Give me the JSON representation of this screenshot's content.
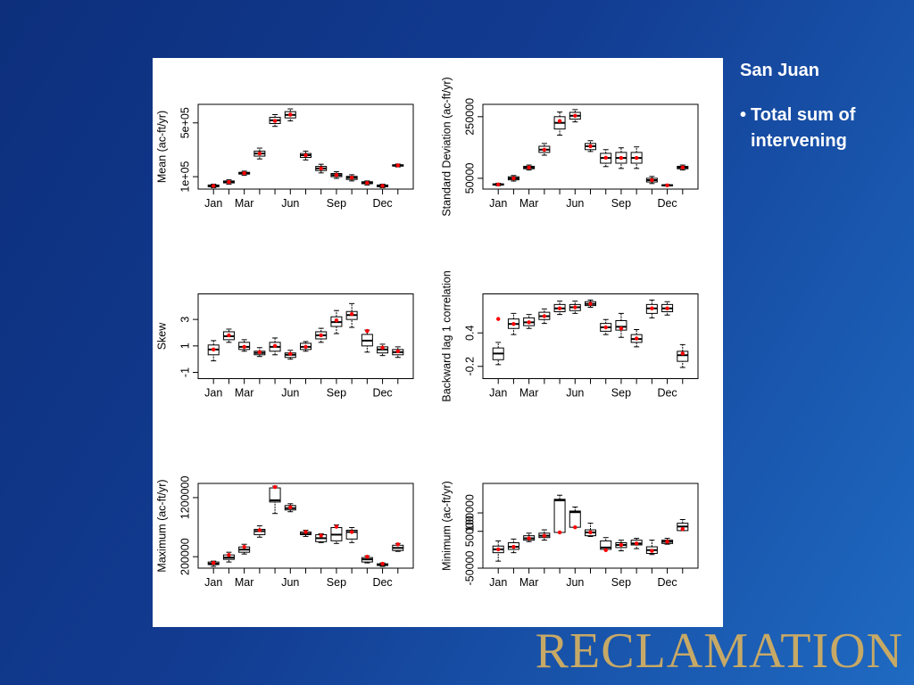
{
  "slide": {
    "title": "San Juan",
    "bullets": [
      "Total sum of intervening"
    ],
    "logo": "RECLAMATION"
  },
  "chart_data": [
    {
      "type": "box",
      "ylabel": "Mean (ac-ft/yr)",
      "log": true,
      "box_color": "#000000",
      "observed_color": "#ff0000",
      "categories": [
        "Jan",
        null,
        "Mar",
        null,
        null,
        "Jun",
        null,
        null,
        "Sep",
        null,
        null,
        "Dec",
        null
      ],
      "ylim": [
        69000,
        870000
      ],
      "yticks": [
        {
          "value": 100000,
          "label": "1e+05"
        },
        {
          "value": 500000,
          "label": "5e+05"
        }
      ],
      "boxes": [
        [
          72000,
          74000,
          76000,
          78000,
          80000
        ],
        [
          80000,
          83000,
          85000,
          88000,
          91000
        ],
        [
          104000,
          108000,
          111000,
          114000,
          118000
        ],
        [
          170000,
          185000,
          200000,
          215000,
          235000
        ],
        [
          450000,
          490000,
          540000,
          590000,
          640000
        ],
        [
          530000,
          580000,
          635000,
          700000,
          760000
        ],
        [
          165000,
          178000,
          190000,
          200000,
          215000
        ],
        [
          112000,
          120000,
          128000,
          136000,
          145000
        ],
        [
          95000,
          100000,
          105000,
          110000,
          116000
        ],
        [
          88000,
          92000,
          97000,
          101000,
          106000
        ],
        [
          78000,
          81000,
          83000,
          86000,
          88000
        ],
        [
          72000,
          74000,
          76000,
          78000,
          80000
        ],
        [
          134000,
          137000,
          140000,
          143000,
          146000
        ]
      ],
      "observed": [
        76000,
        85000,
        111000,
        200000,
        530000,
        640000,
        190000,
        128000,
        105000,
        97000,
        83000,
        76000,
        140000
      ]
    },
    {
      "type": "box",
      "ylabel": "Standard Deviation (ac-ft/yr)",
      "log": false,
      "box_color": "#000000",
      "observed_color": "#ff0000",
      "categories": [
        "Jan",
        null,
        "Mar",
        null,
        null,
        "Jun",
        null,
        null,
        "Sep",
        null,
        null,
        "Dec",
        null
      ],
      "ylim": [
        15000,
        290000
      ],
      "yticks": [
        50000,
        250000
      ],
      "boxes": [
        [
          26000,
          28000,
          30000,
          32000,
          34000
        ],
        [
          41000,
          45000,
          50000,
          55000,
          59000
        ],
        [
          77000,
          81000,
          85000,
          89000,
          93000
        ],
        [
          125000,
          134000,
          143000,
          154000,
          163000
        ],
        [
          190000,
          210000,
          230000,
          250000,
          265000
        ],
        [
          233000,
          242000,
          253000,
          264000,
          273000
        ],
        [
          137000,
          143000,
          154000,
          163000,
          172000
        ],
        [
          88000,
          99000,
          116000,
          131000,
          143000
        ],
        [
          82000,
          99000,
          116000,
          134000,
          149000
        ],
        [
          82000,
          99000,
          116000,
          134000,
          152000
        ],
        [
          33000,
          38000,
          44000,
          50000,
          56000
        ],
        [
          25000,
          26000,
          27000,
          29000,
          30000
        ],
        [
          77000,
          81000,
          85000,
          89000,
          93000
        ]
      ],
      "observed": [
        30000,
        50000,
        85000,
        143000,
        236000,
        253000,
        154000,
        117000,
        116000,
        116000,
        44000,
        27000,
        85000
      ]
    },
    {
      "type": "box",
      "ylabel": "Skew",
      "log": false,
      "box_color": "#000000",
      "observed_color": "#ff0000",
      "categories": [
        "Jan",
        null,
        "Mar",
        null,
        null,
        "Jun",
        null,
        null,
        "Sep",
        null,
        null,
        "Dec",
        null
      ],
      "ylim": [
        -1.47,
        4.93
      ],
      "yticks": [
        -1,
        1,
        3
      ],
      "boxes": [
        [
          -0.13,
          0.33,
          0.73,
          1.07,
          1.4
        ],
        [
          1.27,
          1.47,
          1.73,
          2.07,
          2.27
        ],
        [
          0.6,
          0.73,
          0.93,
          1.27,
          1.47
        ],
        [
          0.2,
          0.33,
          0.47,
          0.6,
          0.87
        ],
        [
          0.33,
          0.6,
          0.93,
          1.27,
          1.6
        ],
        [
          0,
          0.13,
          0.33,
          0.47,
          0.67
        ],
        [
          0.6,
          0.73,
          0.93,
          1.2,
          1.33
        ],
        [
          1.27,
          1.53,
          1.8,
          2.07,
          2.33
        ],
        [
          1.93,
          2.47,
          2.8,
          3.2,
          3.67
        ],
        [
          2.4,
          3,
          3.33,
          3.6,
          4.2
        ],
        [
          0.53,
          1,
          1.4,
          1.87,
          2.2
        ],
        [
          0.27,
          0.47,
          0.73,
          0.93,
          1.13
        ],
        [
          0.13,
          0.33,
          0.53,
          0.73,
          0.93
        ]
      ],
      "observed": [
        0.73,
        1.8,
        0.93,
        0.53,
        1,
        0.4,
        0.93,
        1.8,
        2.93,
        3.4,
        2.13,
        0.87,
        0.6
      ]
    },
    {
      "type": "box",
      "ylabel": "Backward lag 1 correlation",
      "log": false,
      "box_color": "#000000",
      "observed_color": "#ff0000",
      "categories": [
        "Jan",
        null,
        "Mar",
        null,
        null,
        "Jun",
        null,
        null,
        "Sep",
        null,
        null,
        "Dec",
        null
      ],
      "ylim": [
        -0.42,
        1.1
      ],
      "yticks": [
        -0.2,
        0.4
      ],
      "boxes": [
        [
          -0.17,
          -0.08,
          0.03,
          0.13,
          0.23
        ],
        [
          0.37,
          0.48,
          0.56,
          0.65,
          0.75
        ],
        [
          0.48,
          0.53,
          0.59,
          0.67,
          0.73
        ],
        [
          0.57,
          0.64,
          0.7,
          0.77,
          0.83
        ],
        [
          0.73,
          0.78,
          0.84,
          0.91,
          0.97
        ],
        [
          0.75,
          0.8,
          0.86,
          0.91,
          0.97
        ],
        [
          0.86,
          0.89,
          0.92,
          0.96,
          0.99
        ],
        [
          0.37,
          0.43,
          0.5,
          0.57,
          0.64
        ],
        [
          0.32,
          0.45,
          0.51,
          0.62,
          0.75
        ],
        [
          0.15,
          0.23,
          0.29,
          0.37,
          0.46
        ],
        [
          0.67,
          0.75,
          0.84,
          0.91,
          0.99
        ],
        [
          0.72,
          0.78,
          0.84,
          0.91,
          0.96
        ],
        [
          -0.22,
          -0.11,
          0,
          0.07,
          0.19
        ]
      ],
      "observed": [
        0.65,
        0.56,
        0.59,
        0.7,
        0.84,
        0.86,
        0.92,
        0.5,
        0.48,
        0.3,
        0.84,
        0.84,
        0.03
      ]
    },
    {
      "type": "box",
      "ylabel": "Maximum (ac-ft/yr)",
      "log": false,
      "box_color": "#000000",
      "observed_color": "#ff0000",
      "categories": [
        "Jan",
        null,
        "Mar",
        null,
        null,
        "Jun",
        null,
        null,
        "Sep",
        null,
        null,
        "Dec",
        null
      ],
      "ylim": [
        6000,
        1440000
      ],
      "yticks": [
        200000,
        1200000
      ],
      "boxes": [
        [
          36000,
          66000,
          81000,
          110000,
          125000
        ],
        [
          110000,
          155000,
          185000,
          230000,
          275000
        ],
        [
          245000,
          275000,
          320000,
          365000,
          410000
        ],
        [
          530000,
          573000,
          633000,
          663000,
          722000
        ],
        [
          931000,
          1125000,
          1155000,
          1364000,
          1394000
        ],
        [
          961000,
          991000,
          1021000,
          1066000,
          1096000
        ],
        [
          543000,
          573000,
          588000,
          618000,
          648000
        ],
        [
          439000,
          454000,
          513000,
          573000,
          588000
        ],
        [
          424000,
          469000,
          573000,
          693000,
          737000
        ],
        [
          439000,
          499000,
          618000,
          648000,
          693000
        ],
        [
          95000,
          110000,
          155000,
          185000,
          215000
        ],
        [
          36000,
          51000,
          66000,
          80000,
          95000
        ],
        [
          290000,
          305000,
          349000,
          394000,
          424000
        ]
      ],
      "observed": [
        96000,
        230000,
        365000,
        648000,
        1379000,
        1036000,
        618000,
        558000,
        707000,
        618000,
        200000,
        80000,
        409000
      ]
    },
    {
      "type": "box",
      "ylabel": "Minimum (ac-ft/yr)",
      "log": false,
      "box_color": "#000000",
      "observed_color": "#ff0000",
      "categories": [
        "Jan",
        null,
        "Mar",
        null,
        null,
        "Jun",
        null,
        null,
        "Sep",
        null,
        null,
        "Dec",
        null
      ],
      "ylim": [
        -50000,
        180000
      ],
      "yticks": [
        -50000,
        50000,
        100000
      ],
      "boxes": [
        [
          -31000,
          -8000,
          1000,
          10000,
          24000
        ],
        [
          -8000,
          1000,
          8000,
          19000,
          29000
        ],
        [
          22000,
          26000,
          31000,
          38000,
          45000
        ],
        [
          26000,
          33000,
          38000,
          45000,
          54000
        ],
        [
          47000,
          47000,
          134000,
          137000,
          148000
        ],
        [
          61000,
          61000,
          102000,
          105000,
          116000
        ],
        [
          36000,
          38000,
          47000,
          54000,
          72000
        ],
        [
          1000,
          1000,
          6000,
          24000,
          33000
        ],
        [
          -3000,
          6000,
          13000,
          19000,
          26000
        ],
        [
          3000,
          13000,
          17000,
          26000,
          31000
        ],
        [
          -13000,
          -10000,
          -1000,
          8000,
          26000
        ],
        [
          15000,
          17000,
          22000,
          26000,
          31000
        ],
        [
          52000,
          52000,
          63000,
          72000,
          82000
        ]
      ],
      "observed": [
        1000,
        8000,
        31000,
        38000,
        47000,
        61000,
        47000,
        -1000,
        13000,
        17000,
        -3000,
        22000,
        56000
      ]
    }
  ]
}
